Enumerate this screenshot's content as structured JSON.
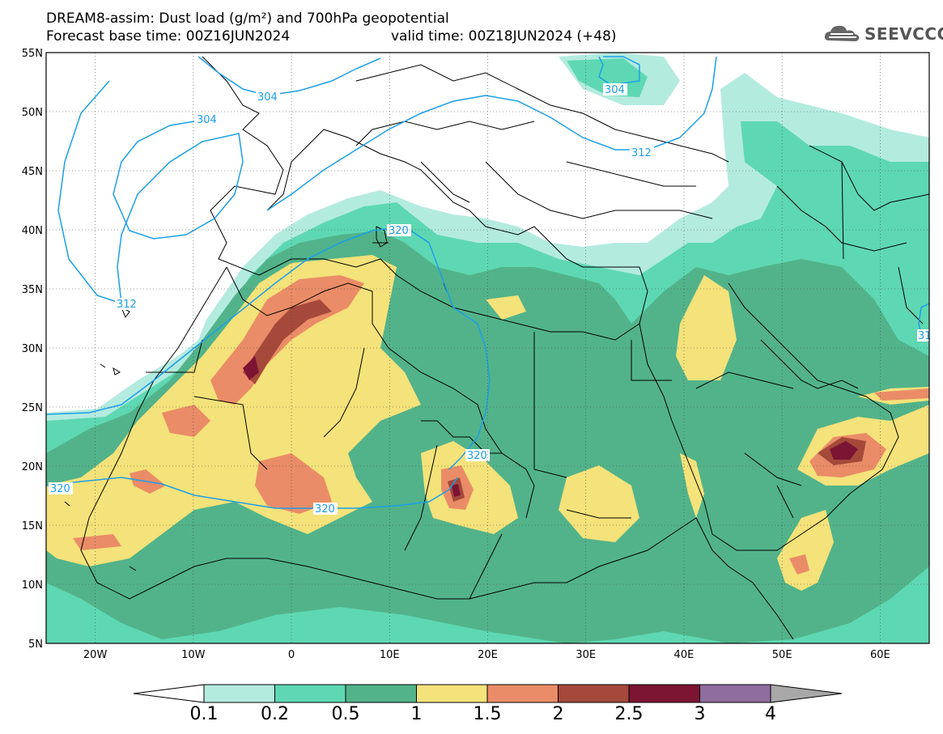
{
  "header": {
    "title_line1": "DREAM8-assim: Dust load (g/m²) and 700hPa geopotential",
    "title_line2_left": "Forecast base time: 00Z16JUN2024",
    "title_line2_right": "valid time: 00Z18JUN2024 (+48)"
  },
  "logo": {
    "text": "SEEVCCC",
    "icon": "cloud-logo-icon"
  },
  "axes": {
    "lat_labels": [
      "55N",
      "50N",
      "45N",
      "40N",
      "35N",
      "30N",
      "25N",
      "20N",
      "15N",
      "10N",
      "5N"
    ],
    "lon_labels": [
      "20W",
      "10W",
      "0",
      "10E",
      "20E",
      "30E",
      "40E",
      "50E",
      "60E"
    ],
    "lon_range": [
      -25,
      65
    ],
    "lat_range": [
      5,
      55
    ]
  },
  "contours": {
    "labels": [
      "304",
      "304",
      "304",
      "312",
      "312",
      "320",
      "320",
      "320",
      "320",
      "31"
    ]
  },
  "colorbar": {
    "levels": [
      "0.1",
      "0.2",
      "0.5",
      "1",
      "1.5",
      "2",
      "2.5",
      "3",
      "4"
    ],
    "colors": [
      "#b4ebdf",
      "#5ed8b2",
      "#52b38a",
      "#f4e27a",
      "#ea8c67",
      "#a5493b",
      "#7c1433",
      "#8f6d9f"
    ],
    "under_color": "#ffffff",
    "over_color": "#a8a8a8"
  }
}
